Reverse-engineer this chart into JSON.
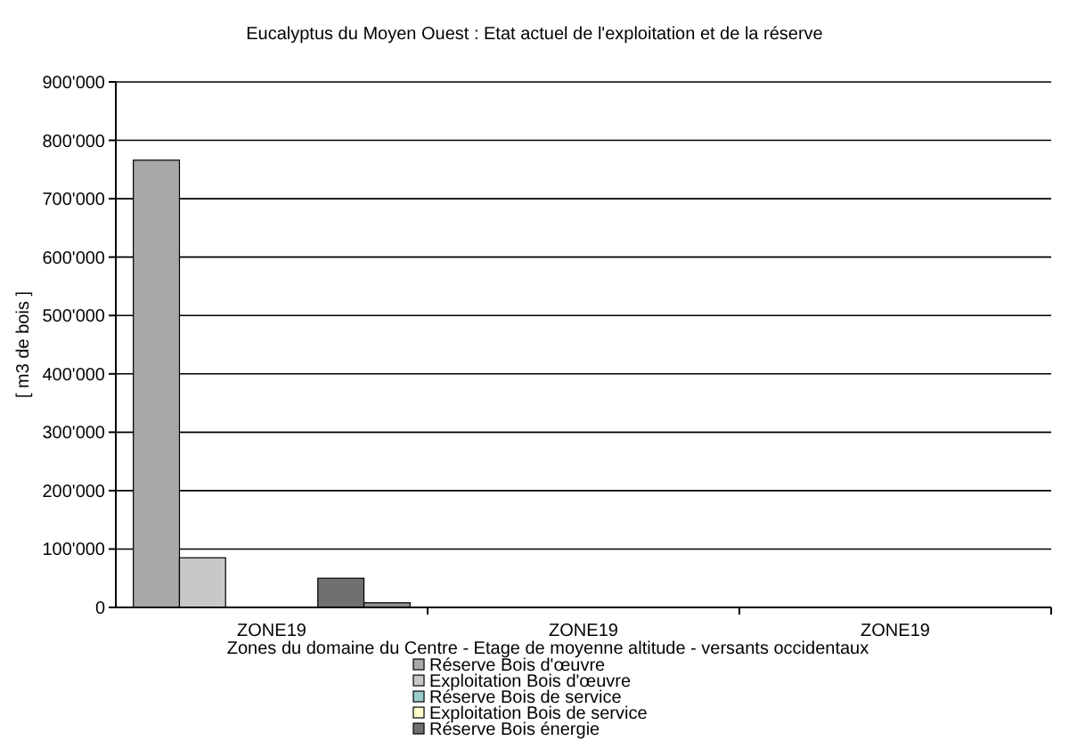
{
  "chart_data": {
    "type": "bar",
    "title": "Eucalyptus du Moyen Ouest : Etat actuel de l'exploitation et de la réserve",
    "xlabel": "Zones du domaine du Centre - Etage de moyenne altitude - versants occidentaux",
    "ylabel": "[ m3 de bois ]",
    "categories": [
      "ZONE19",
      "ZONE19",
      "ZONE19"
    ],
    "series": [
      {
        "name": "Réserve Bois d'œuvre",
        "color": "#a8a8a8",
        "values": [
          766000,
          0,
          0
        ]
      },
      {
        "name": "Exploitation Bois d'œuvre",
        "color": "#c8c8c8",
        "values": [
          85000,
          0,
          0
        ]
      },
      {
        "name": "Réserve Bois de service",
        "color": "#99cccc",
        "values": [
          0,
          0,
          0
        ]
      },
      {
        "name": "Exploitation Bois de service",
        "color": "#ffffcc",
        "values": [
          0,
          0,
          0
        ]
      },
      {
        "name": "Réserve Bois énergie",
        "color": "#707070",
        "values": [
          50000,
          0,
          0
        ]
      },
      {
        "color": "#909090",
        "values": [
          8000,
          0,
          0
        ]
      }
    ],
    "ylim": [
      0,
      900000
    ],
    "yticks": [
      {
        "value": 0,
        "label": "0"
      },
      {
        "value": 100000,
        "label": "100'000"
      },
      {
        "value": 200000,
        "label": "200'000"
      },
      {
        "value": 300000,
        "label": "300'000"
      },
      {
        "value": 400000,
        "label": "400'000"
      },
      {
        "value": 500000,
        "label": "500'000"
      },
      {
        "value": 600000,
        "label": "600'000"
      },
      {
        "value": 700000,
        "label": "700'000"
      },
      {
        "value": 800000,
        "label": "800'000"
      },
      {
        "value": 900000,
        "label": "900'000"
      }
    ],
    "grid": "y",
    "legend": "bottom"
  }
}
